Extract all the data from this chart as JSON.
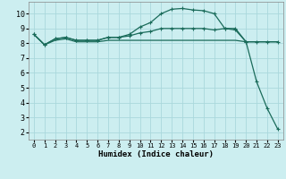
{
  "xlabel": "Humidex (Indice chaleur)",
  "background_color": "#cceef0",
  "grid_color": "#aad8dc",
  "line_color": "#1a6b5a",
  "xlim": [
    -0.5,
    23.5
  ],
  "ylim": [
    1.5,
    10.8
  ],
  "yticks": [
    2,
    3,
    4,
    5,
    6,
    7,
    8,
    9,
    10
  ],
  "xticks": [
    0,
    1,
    2,
    3,
    4,
    5,
    6,
    7,
    8,
    9,
    10,
    11,
    12,
    13,
    14,
    15,
    16,
    17,
    18,
    19,
    20,
    21,
    22,
    23
  ],
  "series1_x": [
    0,
    1,
    2,
    3,
    4,
    5,
    6,
    7,
    8,
    9,
    10,
    11,
    12,
    13,
    14,
    15,
    16,
    17,
    18,
    19,
    20,
    21,
    22,
    23
  ],
  "series1_y": [
    8.6,
    7.9,
    8.3,
    8.4,
    8.2,
    8.2,
    8.2,
    8.4,
    8.4,
    8.6,
    9.1,
    9.4,
    10.0,
    10.3,
    10.35,
    10.25,
    10.2,
    10.0,
    9.0,
    9.0,
    8.1,
    5.4,
    3.6,
    2.2
  ],
  "series2_x": [
    0,
    1,
    2,
    3,
    4,
    5,
    6,
    7,
    8,
    9,
    10,
    11,
    12,
    13,
    14,
    15,
    16,
    17,
    18,
    19,
    20,
    21,
    22,
    23
  ],
  "series2_y": [
    8.6,
    7.9,
    8.3,
    8.4,
    8.2,
    8.2,
    8.2,
    8.4,
    8.4,
    8.5,
    8.7,
    8.8,
    9.0,
    9.0,
    9.0,
    9.0,
    9.0,
    8.9,
    9.0,
    8.9,
    8.1,
    8.1,
    8.1,
    8.1
  ],
  "series3_x": [
    0,
    1,
    2,
    3,
    4,
    5,
    6,
    7,
    8,
    9,
    10,
    11,
    12,
    13,
    14,
    15,
    16,
    17,
    18,
    19,
    20,
    21,
    22,
    23
  ],
  "series3_y": [
    8.6,
    7.9,
    8.2,
    8.3,
    8.1,
    8.1,
    8.1,
    8.2,
    8.2,
    8.2,
    8.2,
    8.2,
    8.2,
    8.2,
    8.2,
    8.2,
    8.2,
    8.2,
    8.2,
    8.2,
    8.1,
    8.1,
    8.1,
    8.1
  ]
}
